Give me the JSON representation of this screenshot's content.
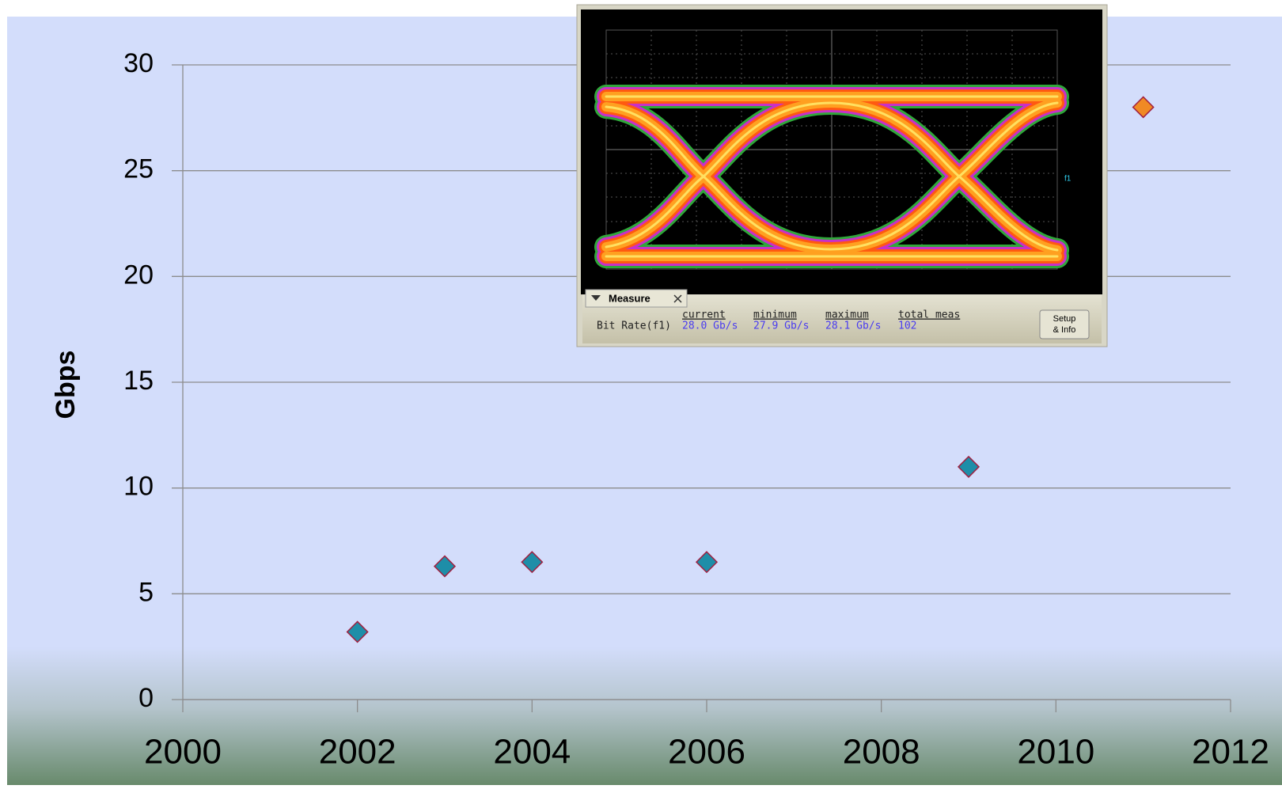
{
  "chart_data": {
    "type": "scatter",
    "y_label": "Gbps",
    "x": [
      2002,
      2003,
      2004,
      2006,
      2009,
      2011
    ],
    "values": [
      3.2,
      6.3,
      6.5,
      6.5,
      11.0,
      28.0
    ],
    "colors": [
      "#1e8ea8",
      "#1e8ea8",
      "#1e8ea8",
      "#1e8ea8",
      "#1e8ea8",
      "#f08a24"
    ],
    "xlim": [
      2000,
      2012
    ],
    "xticks": [
      2000,
      2002,
      2004,
      2006,
      2008,
      2010,
      2012
    ],
    "ylim": [
      0,
      30
    ],
    "yticks": [
      0,
      5,
      10,
      15,
      20,
      25,
      30
    ],
    "grid": true
  },
  "inset": {
    "tab": "Measure",
    "row_label": "Bit Rate(f1)",
    "marker_label": "f1",
    "columns": [
      "current",
      "minimum",
      "maximum",
      "total meas"
    ],
    "values": [
      "28.0 Gb/s",
      "27.9 Gb/s",
      "28.1 Gb/s",
      "102"
    ],
    "button": [
      "Setup",
      "& Info"
    ]
  }
}
